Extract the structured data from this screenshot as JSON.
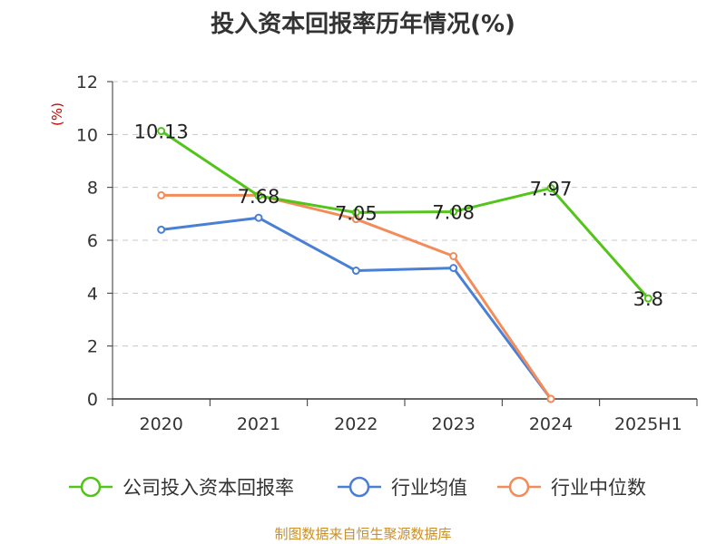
{
  "chart_data": {
    "type": "line",
    "title": "投入资本回报率历年情况(%)",
    "ylabel": "(%)",
    "categories": [
      "2020",
      "2021",
      "2022",
      "2023",
      "2024",
      "2025H1"
    ],
    "ylim": [
      0,
      12
    ],
    "yticks": [
      0,
      2,
      4,
      6,
      8,
      10,
      12
    ],
    "grid": true,
    "legend_position": "bottom",
    "series": [
      {
        "name": "公司投入资本回报率",
        "color": "#52c41a",
        "values": [
          10.13,
          7.68,
          7.05,
          7.08,
          7.97,
          3.8
        ],
        "labels": [
          "10.13",
          "7.68",
          "7.05",
          "7.08",
          "7.97",
          "3.8"
        ]
      },
      {
        "name": "行业均值",
        "color": "#4a7fd6",
        "values": [
          6.4,
          6.85,
          4.85,
          4.95,
          0,
          null
        ]
      },
      {
        "name": "行业中位数",
        "color": "#f28c5a",
        "values": [
          7.7,
          7.7,
          6.8,
          5.4,
          0,
          null
        ]
      }
    ]
  },
  "footer": {
    "source": "制图数据来自恒生聚源数据库"
  }
}
